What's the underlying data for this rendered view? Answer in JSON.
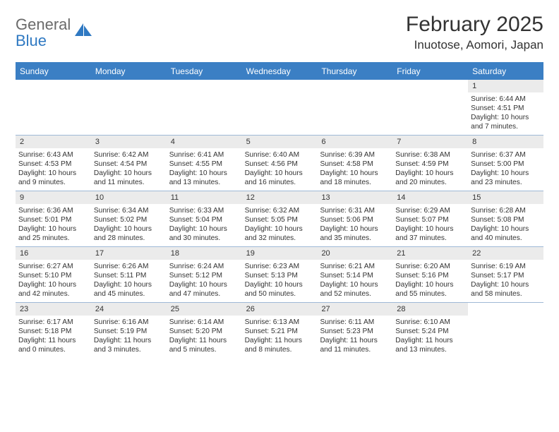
{
  "brand": {
    "word1": "General",
    "word2": "Blue"
  },
  "header": {
    "month_title": "February 2025",
    "location": "Inuotose, Aomori, Japan"
  },
  "theme": {
    "header_bg": "#3b7fc4",
    "daynum_bg": "#ebebeb",
    "row_divider": "#9fb9d6",
    "text_color": "#333333",
    "logo_gray": "#6a6a6a",
    "logo_blue": "#2f79c2",
    "month_fontsize": 30,
    "location_fontsize": 17,
    "dow_fontsize": 12,
    "cell_fontsize": 10.2
  },
  "days_of_week": [
    "Sunday",
    "Monday",
    "Tuesday",
    "Wednesday",
    "Thursday",
    "Friday",
    "Saturday"
  ],
  "weeks": [
    [
      null,
      null,
      null,
      null,
      null,
      null,
      {
        "n": "1",
        "sunrise": "6:44 AM",
        "sunset": "4:51 PM",
        "daylight": "10 hours and 7 minutes."
      }
    ],
    [
      {
        "n": "2",
        "sunrise": "6:43 AM",
        "sunset": "4:53 PM",
        "daylight": "10 hours and 9 minutes."
      },
      {
        "n": "3",
        "sunrise": "6:42 AM",
        "sunset": "4:54 PM",
        "daylight": "10 hours and 11 minutes."
      },
      {
        "n": "4",
        "sunrise": "6:41 AM",
        "sunset": "4:55 PM",
        "daylight": "10 hours and 13 minutes."
      },
      {
        "n": "5",
        "sunrise": "6:40 AM",
        "sunset": "4:56 PM",
        "daylight": "10 hours and 16 minutes."
      },
      {
        "n": "6",
        "sunrise": "6:39 AM",
        "sunset": "4:58 PM",
        "daylight": "10 hours and 18 minutes."
      },
      {
        "n": "7",
        "sunrise": "6:38 AM",
        "sunset": "4:59 PM",
        "daylight": "10 hours and 20 minutes."
      },
      {
        "n": "8",
        "sunrise": "6:37 AM",
        "sunset": "5:00 PM",
        "daylight": "10 hours and 23 minutes."
      }
    ],
    [
      {
        "n": "9",
        "sunrise": "6:36 AM",
        "sunset": "5:01 PM",
        "daylight": "10 hours and 25 minutes."
      },
      {
        "n": "10",
        "sunrise": "6:34 AM",
        "sunset": "5:02 PM",
        "daylight": "10 hours and 28 minutes."
      },
      {
        "n": "11",
        "sunrise": "6:33 AM",
        "sunset": "5:04 PM",
        "daylight": "10 hours and 30 minutes."
      },
      {
        "n": "12",
        "sunrise": "6:32 AM",
        "sunset": "5:05 PM",
        "daylight": "10 hours and 32 minutes."
      },
      {
        "n": "13",
        "sunrise": "6:31 AM",
        "sunset": "5:06 PM",
        "daylight": "10 hours and 35 minutes."
      },
      {
        "n": "14",
        "sunrise": "6:29 AM",
        "sunset": "5:07 PM",
        "daylight": "10 hours and 37 minutes."
      },
      {
        "n": "15",
        "sunrise": "6:28 AM",
        "sunset": "5:08 PM",
        "daylight": "10 hours and 40 minutes."
      }
    ],
    [
      {
        "n": "16",
        "sunrise": "6:27 AM",
        "sunset": "5:10 PM",
        "daylight": "10 hours and 42 minutes."
      },
      {
        "n": "17",
        "sunrise": "6:26 AM",
        "sunset": "5:11 PM",
        "daylight": "10 hours and 45 minutes."
      },
      {
        "n": "18",
        "sunrise": "6:24 AM",
        "sunset": "5:12 PM",
        "daylight": "10 hours and 47 minutes."
      },
      {
        "n": "19",
        "sunrise": "6:23 AM",
        "sunset": "5:13 PM",
        "daylight": "10 hours and 50 minutes."
      },
      {
        "n": "20",
        "sunrise": "6:21 AM",
        "sunset": "5:14 PM",
        "daylight": "10 hours and 52 minutes."
      },
      {
        "n": "21",
        "sunrise": "6:20 AM",
        "sunset": "5:16 PM",
        "daylight": "10 hours and 55 minutes."
      },
      {
        "n": "22",
        "sunrise": "6:19 AM",
        "sunset": "5:17 PM",
        "daylight": "10 hours and 58 minutes."
      }
    ],
    [
      {
        "n": "23",
        "sunrise": "6:17 AM",
        "sunset": "5:18 PM",
        "daylight": "11 hours and 0 minutes."
      },
      {
        "n": "24",
        "sunrise": "6:16 AM",
        "sunset": "5:19 PM",
        "daylight": "11 hours and 3 minutes."
      },
      {
        "n": "25",
        "sunrise": "6:14 AM",
        "sunset": "5:20 PM",
        "daylight": "11 hours and 5 minutes."
      },
      {
        "n": "26",
        "sunrise": "6:13 AM",
        "sunset": "5:21 PM",
        "daylight": "11 hours and 8 minutes."
      },
      {
        "n": "27",
        "sunrise": "6:11 AM",
        "sunset": "5:23 PM",
        "daylight": "11 hours and 11 minutes."
      },
      {
        "n": "28",
        "sunrise": "6:10 AM",
        "sunset": "5:24 PM",
        "daylight": "11 hours and 13 minutes."
      },
      null
    ]
  ],
  "labels": {
    "sunrise": "Sunrise:",
    "sunset": "Sunset:",
    "daylight": "Daylight:"
  }
}
